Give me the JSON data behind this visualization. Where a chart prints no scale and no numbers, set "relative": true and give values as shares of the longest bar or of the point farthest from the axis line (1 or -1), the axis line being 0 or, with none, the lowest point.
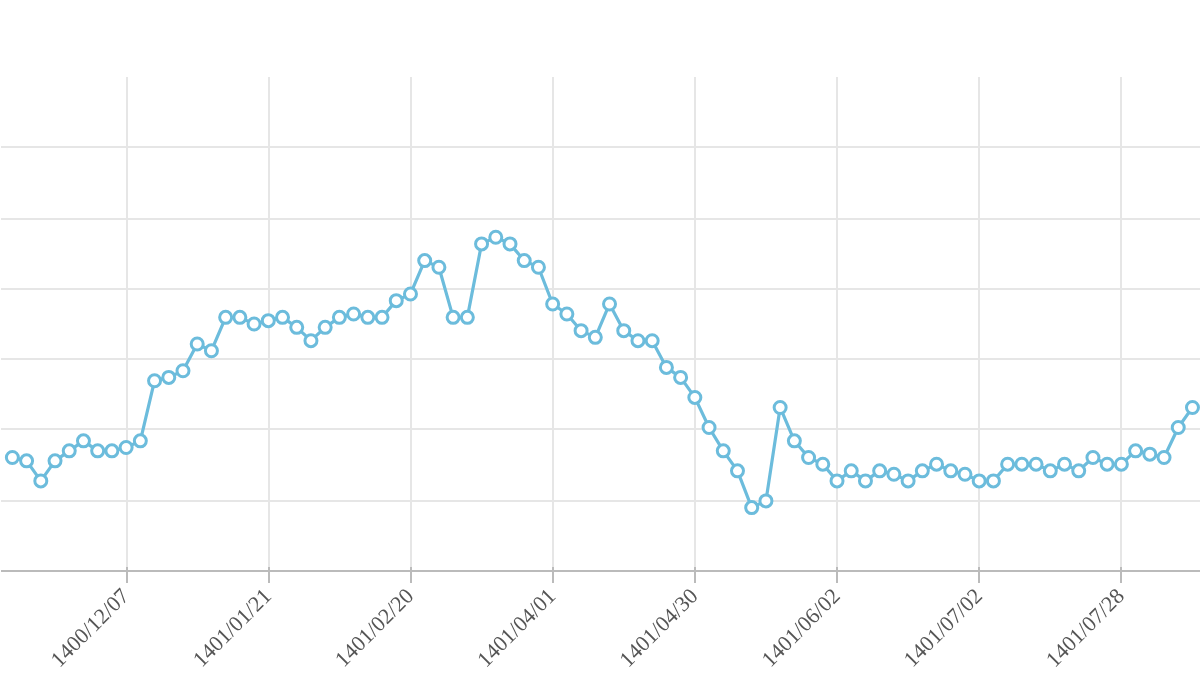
{
  "chart_data": {
    "type": "line",
    "relative": true,
    "grid": true,
    "marker": "circle",
    "line_style": "solid",
    "categories": [
      null,
      null,
      null,
      null,
      null,
      null,
      null,
      null,
      "1400/12/07",
      null,
      null,
      null,
      null,
      null,
      null,
      null,
      null,
      null,
      "1401/01/21",
      null,
      null,
      null,
      null,
      null,
      null,
      null,
      null,
      null,
      "1401/02/20",
      null,
      null,
      null,
      null,
      null,
      null,
      null,
      null,
      null,
      "1401/04/01",
      null,
      null,
      null,
      null,
      null,
      null,
      null,
      null,
      null,
      "1401/04/30",
      null,
      null,
      null,
      null,
      null,
      null,
      null,
      null,
      null,
      "1401/06/02",
      null,
      null,
      null,
      null,
      null,
      null,
      null,
      null,
      null,
      "1401/07/02",
      null,
      null,
      null,
      null,
      null,
      null,
      null,
      null,
      null,
      "1401/07/28",
      null,
      null,
      null,
      null,
      null
    ],
    "series": [
      {
        "color": "#6cbcdc",
        "values": [
          0.34,
          0.33,
          0.27,
          0.33,
          0.36,
          0.39,
          0.36,
          0.36,
          0.37,
          0.39,
          0.57,
          0.58,
          0.6,
          0.68,
          0.66,
          0.76,
          0.76,
          0.74,
          0.75,
          0.76,
          0.73,
          0.69,
          0.73,
          0.76,
          0.77,
          0.76,
          0.76,
          0.81,
          0.83,
          0.93,
          0.91,
          0.76,
          0.76,
          0.98,
          1.0,
          0.98,
          0.93,
          0.91,
          0.8,
          0.77,
          0.72,
          0.7,
          0.8,
          0.72,
          0.69,
          0.69,
          0.61,
          0.58,
          0.52,
          0.43,
          0.36,
          0.3,
          0.19,
          0.21,
          0.49,
          0.39,
          0.34,
          0.32,
          0.27,
          0.3,
          0.27,
          0.3,
          0.29,
          0.27,
          0.3,
          0.32,
          0.3,
          0.29,
          0.27,
          0.27,
          0.32,
          0.32,
          0.32,
          0.3,
          0.32,
          0.3,
          0.34,
          0.32,
          0.32,
          0.36,
          0.35,
          0.34,
          0.43,
          0.49
        ]
      }
    ]
  }
}
